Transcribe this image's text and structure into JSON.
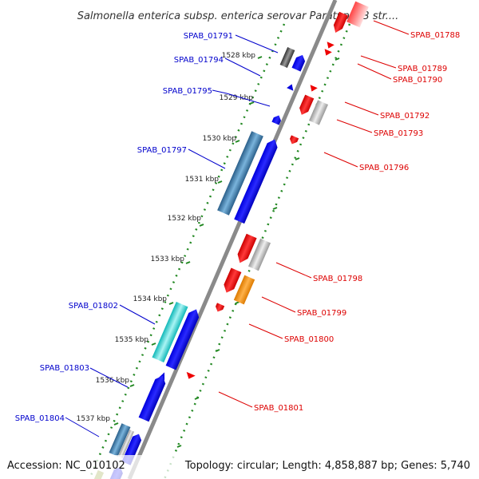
{
  "title": "Salmonella enterica subsp. enterica serovar Paratyphi B str....",
  "footer": {
    "accession": "Accession: NC_010102",
    "summary": "Topology: circular; Length: 4,858,887 bp; Genes: 5,740"
  },
  "colors": {
    "forward_label": "#0000cc",
    "reverse_label": "#dd0000",
    "backbone": "#8a8a8a",
    "tick_dots": "#228822"
  },
  "kbp_ticks": [
    "1528 kbp",
    "1529 kbp",
    "1530 kbp",
    "1531 kbp",
    "1532 kbp",
    "1533 kbp",
    "1534 kbp",
    "1535 kbp",
    "1536 kbp",
    "1537 kbp"
  ],
  "forward_labels": [
    "SPAB_01791",
    "SPAB_01794",
    "SPAB_01795",
    "SPAB_01797",
    "SPAB_01802",
    "SPAB_01803",
    "SPAB_01804"
  ],
  "reverse_labels": [
    "SPAB_01788",
    "SPAB_01789",
    "SPAB_01790",
    "SPAB_01792",
    "SPAB_01793",
    "SPAB_01796",
    "SPAB_01798",
    "SPAB_01799",
    "SPAB_01800",
    "SPAB_01801"
  ]
}
